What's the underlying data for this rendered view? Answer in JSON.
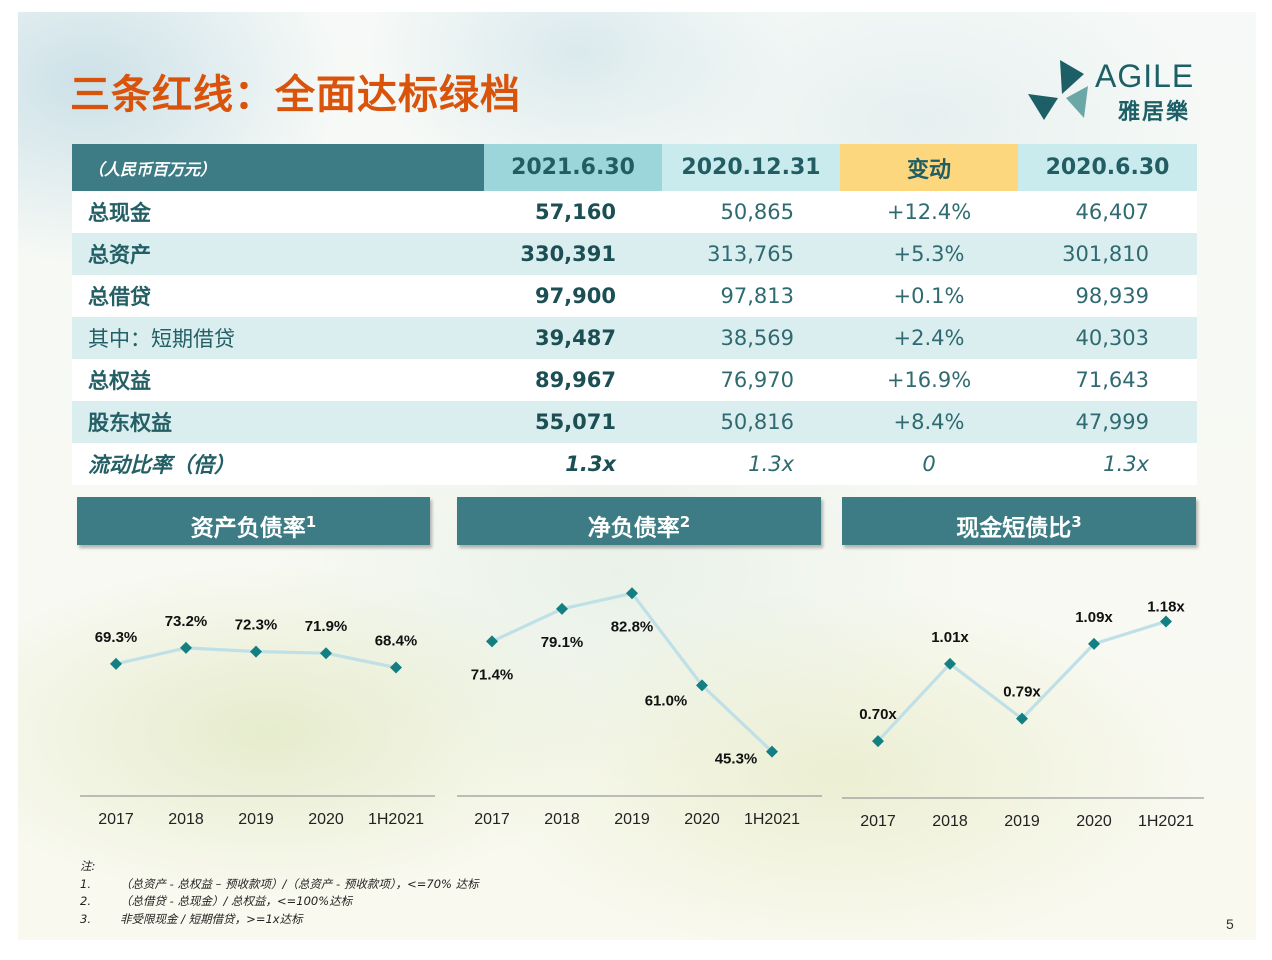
{
  "title": "三条红线：全面达标绿档",
  "logo": {
    "en": "AGILE",
    "cn": "雅居樂"
  },
  "table": {
    "unit": "（人民币百万元）",
    "headers": [
      "2021.6.30",
      "2020.12.31",
      "变动",
      "2020.6.30"
    ],
    "rows": [
      {
        "label": "总现金",
        "values": [
          "57,160",
          "50,865",
          "+12.4%",
          "46,407"
        ]
      },
      {
        "label": "总资产",
        "values": [
          "330,391",
          "313,765",
          "+5.3%",
          "301,810"
        ]
      },
      {
        "label": "总借贷",
        "values": [
          "97,900",
          "97,813",
          "+0.1%",
          "98,939"
        ]
      },
      {
        "label": "其中：短期借贷",
        "values": [
          "39,487",
          "38,569",
          "+2.4%",
          "40,303"
        ]
      },
      {
        "label": "总权益",
        "values": [
          "89,967",
          "76,970",
          "+16.9%",
          "71,643"
        ]
      },
      {
        "label": "股东权益",
        "values": [
          "55,071",
          "50,816",
          "+8.4%",
          "47,999"
        ]
      },
      {
        "label": "流动比率（倍）",
        "values": [
          "1.3x",
          "1.3x",
          "0",
          "1.3x"
        ]
      }
    ]
  },
  "chart_data": [
    {
      "type": "line",
      "title": "资产负债率",
      "footnote": "1",
      "categories": [
        "2017",
        "2018",
        "2019",
        "2020",
        "1H2021"
      ],
      "values": [
        69.3,
        73.2,
        72.3,
        71.9,
        68.4
      ],
      "labels": [
        "69.3%",
        "73.2%",
        "72.3%",
        "71.9%",
        "68.4%"
      ],
      "ylim": [
        60,
        80
      ],
      "color": "#bfe0e6",
      "marker_color": "#137f82"
    },
    {
      "type": "line",
      "title": "净负债率",
      "footnote": "2",
      "categories": [
        "2017",
        "2018",
        "2019",
        "2020",
        "1H2021"
      ],
      "values": [
        71.4,
        79.1,
        82.8,
        61.0,
        45.3
      ],
      "labels": [
        "71.4%",
        "79.1%",
        "82.8%",
        "61.0%",
        "45.3%"
      ],
      "ylim": [
        40,
        85
      ],
      "color": "#bfe0e6",
      "marker_color": "#137f82"
    },
    {
      "type": "line",
      "title": "现金短债比",
      "footnote": "3",
      "categories": [
        "2017",
        "2018",
        "2019",
        "2020",
        "1H2021"
      ],
      "values": [
        0.7,
        1.01,
        0.79,
        1.09,
        1.18
      ],
      "labels": [
        "0.70x",
        "1.01x",
        "0.79x",
        "1.09x",
        "1.18x"
      ],
      "ylim": [
        0.6,
        1.25
      ],
      "color": "#bfe0e6",
      "marker_color": "#137f82"
    }
  ],
  "notes": {
    "head": "注:",
    "items": [
      {
        "num": "1.",
        "text": "（总资产 - 总权益 – 预收款项）/（总资产 - 预收款项），<=70% 达标"
      },
      {
        "num": "2.",
        "text": "（总借贷 - 总现金）/ 总权益，<=100%达标"
      },
      {
        "num": "3.",
        "text": "非受限现金 / 短期借贷，>=1x达标"
      }
    ]
  },
  "page_number": "5"
}
